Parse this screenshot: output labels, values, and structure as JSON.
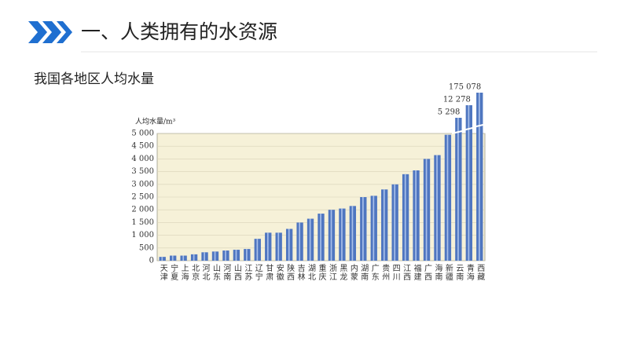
{
  "header": {
    "title": "一、人类拥有的水资源"
  },
  "chart_data": {
    "type": "bar",
    "title": "我国各地区人均水量",
    "y_label": "人均水量/m³",
    "categories": [
      "天津",
      "宁夏",
      "上海",
      "北京",
      "河北",
      "山东",
      "河南",
      "山西",
      "江苏",
      "辽宁",
      "甘肃",
      "安徽",
      "陕西",
      "吉林",
      "湖北",
      "重庆",
      "浙江",
      "黑龙",
      "内蒙",
      "湖南",
      "广东",
      "贵州",
      "四川",
      "江西",
      "福建",
      "广西",
      "海南",
      "新疆",
      "云南",
      "青海",
      "西藏"
    ],
    "values": [
      150,
      200,
      200,
      250,
      330,
      360,
      400,
      430,
      460,
      860,
      1100,
      1100,
      1250,
      1500,
      1650,
      1850,
      2000,
      2050,
      2150,
      2500,
      2550,
      2800,
      3000,
      3400,
      3550,
      4000,
      4150,
      4950,
      5298,
      12278,
      175078
    ],
    "value_labels": [
      null,
      null,
      null,
      null,
      null,
      null,
      null,
      null,
      null,
      null,
      null,
      null,
      null,
      null,
      null,
      null,
      null,
      null,
      null,
      null,
      null,
      null,
      null,
      null,
      null,
      null,
      null,
      null,
      "5 298",
      "12 278",
      "175 078"
    ],
    "color": "#4f76c0",
    "ylim": [
      0,
      5000
    ],
    "yticks": [
      0,
      500,
      {
        "value": 1000,
        "label": "1 000"
      },
      {
        "value": 1500,
        "label": "1 500"
      },
      {
        "value": 2000,
        "label": "2 000"
      },
      {
        "value": 2500,
        "label": "2 500"
      },
      {
        "value": 3000,
        "label": "3 000"
      },
      {
        "value": 3500,
        "label": "3 500"
      },
      {
        "value": 4000,
        "label": "4 000"
      },
      {
        "value": 4500,
        "label": "4 500"
      },
      {
        "value": 5000,
        "label": "5 000"
      }
    ],
    "grid": true
  }
}
